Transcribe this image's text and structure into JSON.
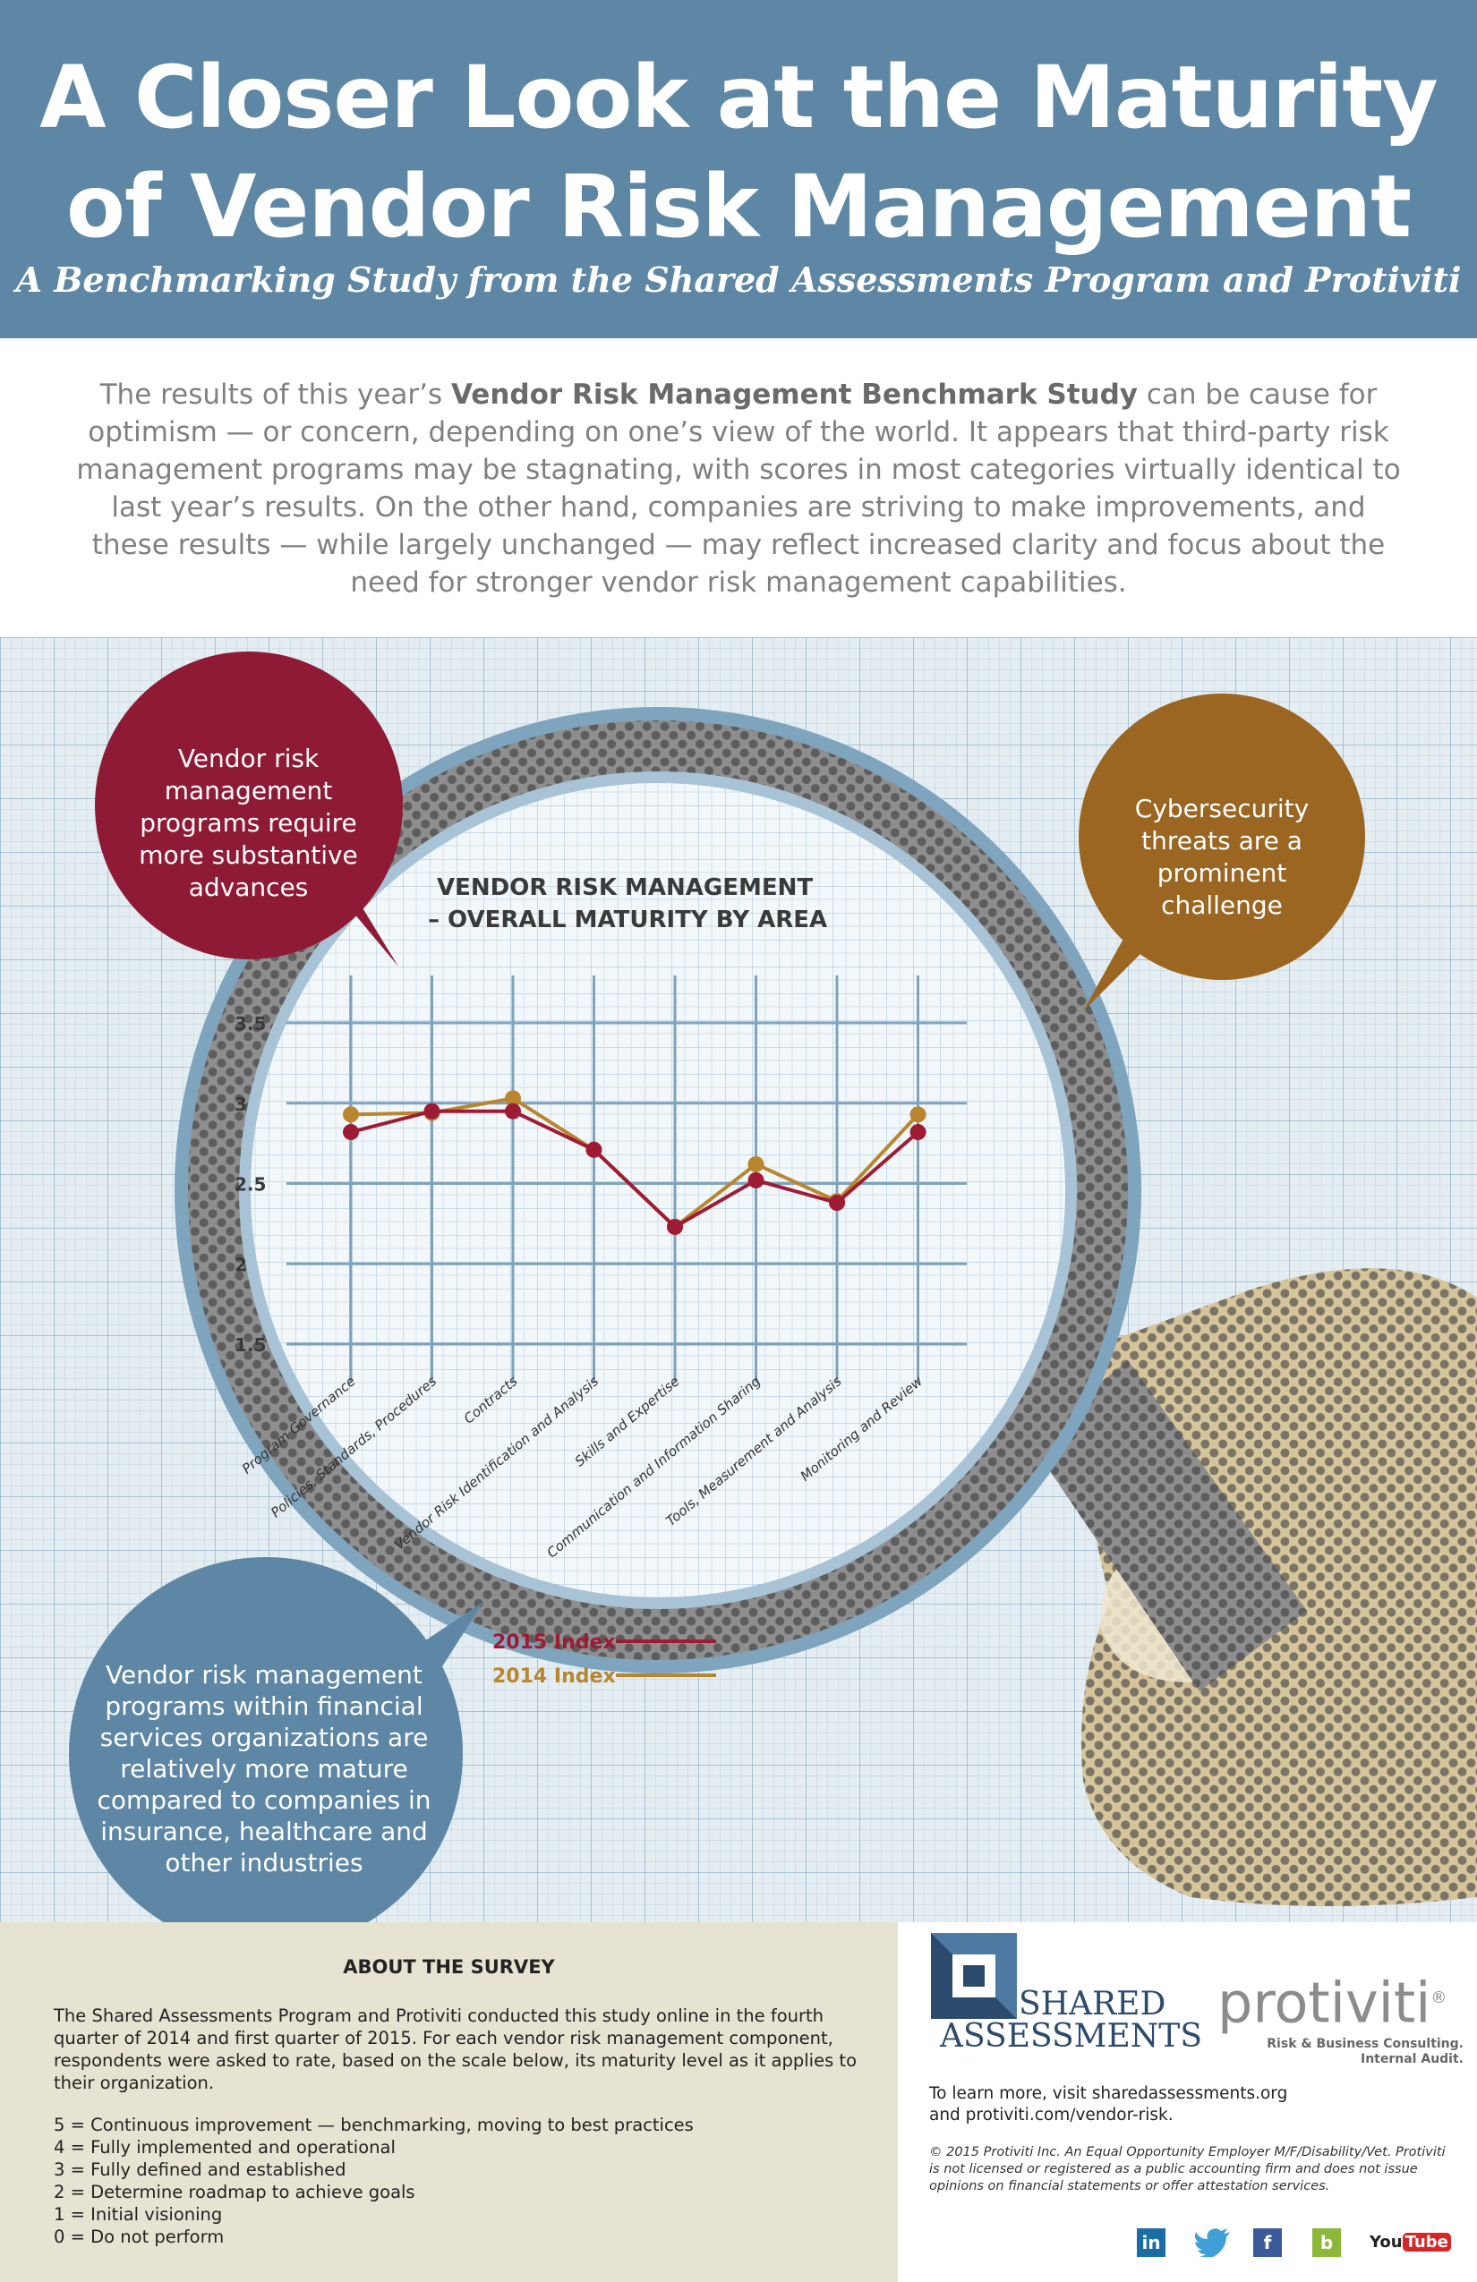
{
  "header": {
    "title_line1": "A Closer Look at the Maturity",
    "title_line2": "of Vendor Risk Management",
    "subtitle": "A Benchmarking Study from the Shared Assessments Program and Protiviti"
  },
  "intro": {
    "part1": "The results of this year’s ",
    "bold": "Vendor Risk Management Benchmark Study",
    "part2": " can be cause for optimism — or concern, depending on one’s view of the world. It appears that third-party risk management programs may be stagnating, with scores in most categories virtually identical to last year’s results. On the other hand, companies are striving to make improvements, and these results — while largely unchanged — may reflect increased clarity and focus about the need for stronger vendor risk management capabilities."
  },
  "bubbles": {
    "left_top": "Vendor risk management programs require more substantive advances",
    "right": "Cybersecurity threats are a prominent challenge",
    "left_bottom": "Vendor risk management programs within financial services organizations are relatively more mature compared to companies in insurance, healthcare and other industries"
  },
  "colors": {
    "header_bg": "#5e87a6",
    "bubble_red": "#8f1a35",
    "bubble_brown": "#9a6621",
    "bubble_blue": "#5e87a6",
    "series_2015": "#9e1b34",
    "series_2014": "#b8862e"
  },
  "chart_data": {
    "type": "line",
    "title_line1": "VENDOR RISK MANAGEMENT",
    "title_line2": "– OVERALL MATURITY BY AREA",
    "categories": [
      "Program Governance",
      "Policies, Standards, Procedures",
      "Contracts",
      "Vendor Risk Identification and Analysis",
      "Skills and Expertise",
      "Communication and Information Sharing",
      "Tools, Measurement and Analysis",
      "Monitoring and Review"
    ],
    "series": [
      {
        "name": "2015 Index",
        "values": [
          2.82,
          2.95,
          2.95,
          2.71,
          2.23,
          2.52,
          2.38,
          2.82
        ]
      },
      {
        "name": "2014 Index",
        "values": [
          2.93,
          2.94,
          3.03,
          2.71,
          2.23,
          2.62,
          2.39,
          2.93
        ]
      }
    ],
    "yticks": [
      "3.5",
      "3",
      "2.5",
      "2",
      "1.5"
    ],
    "ylim": [
      1.5,
      3.5
    ],
    "grid": true,
    "legend_position": "bottom"
  },
  "survey": {
    "title": "ABOUT THE SURVEY",
    "text": "The Shared Assessments Program and Protiviti conducted this study online in the fourth quarter of 2014 and first quarter of 2015. For each vendor risk management component, respondents were asked to rate, based on the scale below, its maturity level as it applies to their organization.",
    "scale": [
      "5 = Continuous improvement — benchmarking, moving to best practices",
      "4 = Fully implemented and operational",
      "3 = Fully defined and established",
      "2 = Determine roadmap to achieve goals",
      "1 = Initial visioning",
      "0 = Do not perform"
    ]
  },
  "logos": {
    "shared_line1": "SHARED",
    "shared_line2": "ASSESSMENTS",
    "protiviti": "protiviti",
    "protiviti_mark": "®",
    "protiviti_tag1": "Risk & Business Consulting.",
    "protiviti_tag2": "Internal Audit."
  },
  "learn_more": {
    "line1": "To learn more, visit sharedassessments.org",
    "line2": "and protiviti.com/vendor-risk."
  },
  "legal": "© 2015 Protiviti Inc. An Equal Opportunity Employer M/F/Disability/Vet. Protiviti is not licensed or registered as a public accounting firm and does not issue opinions on financial statements or offer attestation services.",
  "social": {
    "linkedin": "in",
    "twitter_icon": "twitter-bird",
    "facebook": "f",
    "blog": "b",
    "youtube_you": "You",
    "youtube_tube": "Tube"
  }
}
